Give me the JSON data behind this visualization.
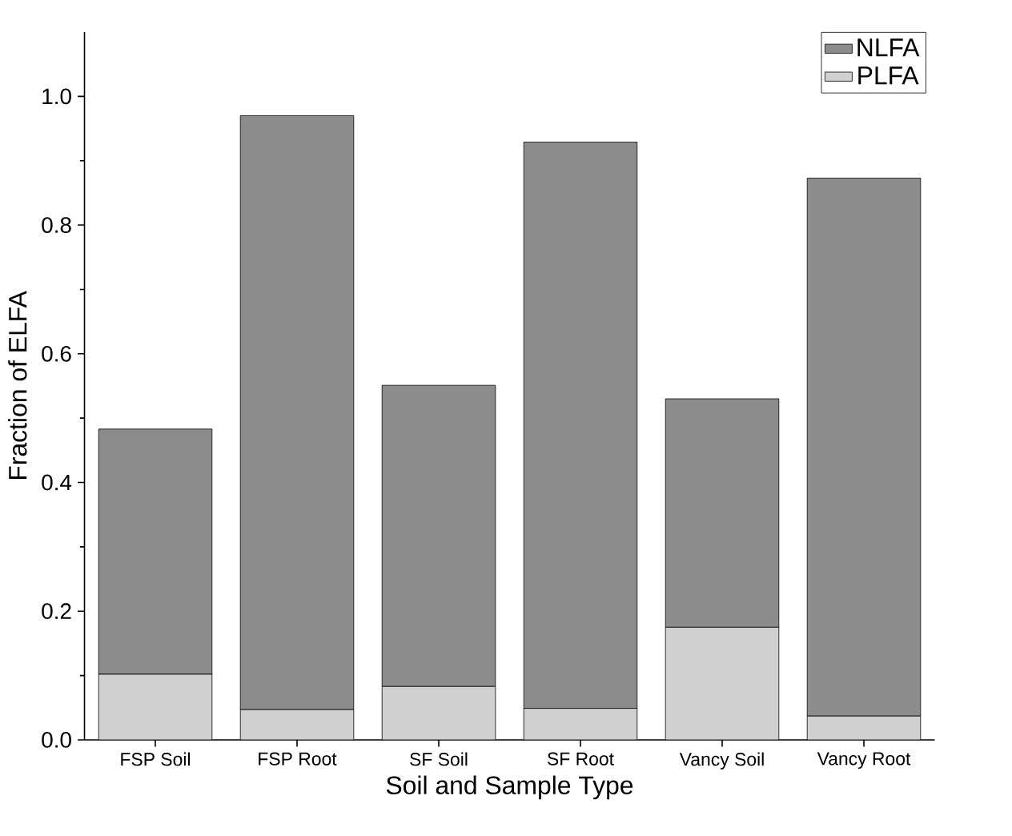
{
  "chart_data": {
    "type": "bar",
    "stacked": true,
    "xlabel": "Soil and Sample Type",
    "ylabel": "Fraction of ELFA",
    "categories": [
      "FSP Soil",
      "FSP Root",
      "SF Soil",
      "SF Root",
      "Vancy Soil",
      "Vancy Root"
    ],
    "series": [
      {
        "name": "PLFA",
        "color": "#d0d0d0",
        "values": [
          0.102,
          0.047,
          0.083,
          0.049,
          0.175,
          0.037
        ]
      },
      {
        "name": "NLFA",
        "color": "#8c8c8c",
        "values": [
          0.381,
          0.923,
          0.468,
          0.88,
          0.355,
          0.836
        ]
      }
    ],
    "ylim": [
      0,
      1.1
    ],
    "yticks": [
      {
        "value": 0,
        "label": "0.0"
      },
      0.2,
      0.4,
      0.6,
      0.8,
      {
        "value": 1.0,
        "label": "1.0"
      }
    ],
    "legend": "top right",
    "grid": false
  }
}
